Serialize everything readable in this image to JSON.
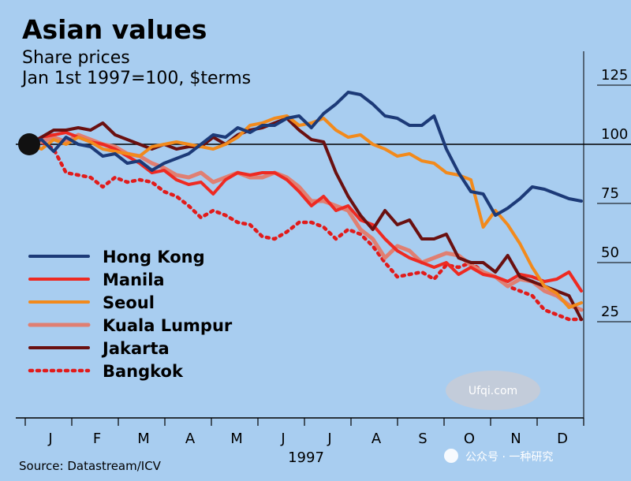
{
  "title": "Asian values",
  "subtitle": "Share prices",
  "subtitle2": "Jan 1st 1997=100, $terms",
  "source": "Source: Datastream/ICV",
  "watermark1": "Ufqi.com",
  "watermark2": "公众号 · 一种研究",
  "chart_data": {
    "type": "line",
    "title": "Asian values",
    "subtitle": "Share prices, Jan 1st 1997=100, $terms",
    "xlabel": "1997",
    "ylabel": "",
    "x_months": [
      "J",
      "F",
      "M",
      "A",
      "M",
      "J",
      "J",
      "A",
      "S",
      "O",
      "N",
      "D"
    ],
    "year_label": "1997",
    "ylim": [
      20,
      132
    ],
    "yticks": [
      25,
      50,
      75,
      100,
      125
    ],
    "grid": "horizontal at ticks",
    "legend_position": "left",
    "series": [
      {
        "name": "Hong Kong",
        "color": "#1c3a78",
        "dash": "",
        "width": 4,
        "x": [
          0,
          0.25,
          0.5,
          0.75,
          1,
          1.25,
          1.5,
          1.75,
          2,
          2.25,
          2.5,
          2.75,
          3,
          3.25,
          3.5,
          3.75,
          4,
          4.25,
          4.5,
          4.75,
          5,
          5.25,
          5.5,
          5.75,
          6,
          6.25,
          6.5,
          6.75,
          7,
          7.25,
          7.5,
          7.75,
          8,
          8.25,
          8.5,
          8.75,
          9,
          9.25,
          9.5,
          9.75,
          10,
          10.25,
          10.5,
          10.75,
          11,
          11.25
        ],
        "y": [
          100,
          102,
          97,
          103,
          100,
          99,
          95,
          96,
          92,
          93,
          89,
          92,
          94,
          96,
          100,
          104,
          103,
          107,
          105,
          108,
          108,
          111,
          112,
          107,
          113,
          117,
          122,
          121,
          117,
          112,
          111,
          108,
          108,
          112,
          98,
          88,
          80,
          79,
          70,
          73,
          77,
          82,
          81,
          79,
          77,
          76
        ]
      },
      {
        "name": "Manila",
        "color": "#ee2a22",
        "dash": "",
        "width": 4,
        "x": [
          0,
          0.25,
          0.5,
          0.75,
          1,
          1.25,
          1.5,
          1.75,
          2,
          2.25,
          2.5,
          2.75,
          3,
          3.25,
          3.5,
          3.75,
          4,
          4.25,
          4.5,
          4.75,
          5,
          5.25,
          5.5,
          5.75,
          6,
          6.25,
          6.5,
          6.75,
          7,
          7.25,
          7.5,
          7.75,
          8,
          8.25,
          8.5,
          8.75,
          9,
          9.25,
          9.5,
          9.75,
          10,
          10.25,
          10.5,
          10.75,
          11,
          11.25
        ],
        "y": [
          100,
          103,
          104,
          105,
          103,
          101,
          100,
          98,
          95,
          92,
          88,
          89,
          85,
          83,
          84,
          79,
          85,
          88,
          87,
          88,
          88,
          85,
          80,
          74,
          78,
          72,
          74,
          68,
          66,
          60,
          55,
          52,
          50,
          48,
          50,
          45,
          48,
          45,
          44,
          42,
          45,
          44,
          42,
          43,
          46,
          38
        ]
      },
      {
        "name": "Seoul",
        "color": "#f28a1c",
        "dash": "",
        "width": 4,
        "x": [
          0,
          0.25,
          0.5,
          0.75,
          1,
          1.25,
          1.5,
          1.75,
          2,
          2.25,
          2.5,
          2.75,
          3,
          3.25,
          3.5,
          3.75,
          4,
          4.25,
          4.5,
          4.75,
          5,
          5.25,
          5.5,
          5.75,
          6,
          6.25,
          6.5,
          6.75,
          7,
          7.25,
          7.5,
          7.75,
          8,
          8.25,
          8.5,
          8.75,
          9,
          9.25,
          9.5,
          9.75,
          10,
          10.25,
          10.5,
          10.75,
          11,
          11.25
        ],
        "y": [
          100,
          98,
          102,
          100,
          103,
          101,
          98,
          97,
          96,
          95,
          99,
          100,
          101,
          100,
          99,
          98,
          100,
          103,
          108,
          109,
          111,
          112,
          108,
          109,
          111,
          106,
          103,
          104,
          100,
          98,
          95,
          96,
          93,
          92,
          88,
          87,
          85,
          65,
          72,
          66,
          58,
          48,
          40,
          37,
          31,
          33
        ]
      },
      {
        "name": "Kuala Lumpur",
        "color": "#e07f72",
        "dash": "",
        "width": 5,
        "x": [
          0,
          0.25,
          0.5,
          0.75,
          1,
          1.25,
          1.5,
          1.75,
          2,
          2.25,
          2.5,
          2.75,
          3,
          3.25,
          3.5,
          3.75,
          4,
          4.25,
          4.5,
          4.75,
          5,
          5.25,
          5.5,
          5.75,
          6,
          6.25,
          6.5,
          6.75,
          7,
          7.25,
          7.5,
          7.75,
          8,
          8.25,
          8.5,
          8.75,
          9,
          9.25,
          9.5,
          9.75,
          10,
          10.25,
          10.5,
          10.75,
          11,
          11.25
        ],
        "y": [
          100,
          101,
          103,
          101,
          104,
          102,
          100,
          99,
          96,
          95,
          92,
          90,
          87,
          86,
          88,
          84,
          86,
          88,
          86,
          86,
          88,
          86,
          82,
          76,
          76,
          74,
          72,
          64,
          60,
          52,
          57,
          55,
          50,
          52,
          54,
          53,
          49,
          46,
          44,
          40,
          43,
          42,
          38,
          36,
          32,
          30
        ]
      },
      {
        "name": "Jakarta",
        "color": "#6a1010",
        "dash": "",
        "width": 4,
        "x": [
          0,
          0.25,
          0.5,
          0.75,
          1,
          1.25,
          1.5,
          1.75,
          2,
          2.25,
          2.5,
          2.75,
          3,
          3.25,
          3.5,
          3.75,
          4,
          4.25,
          4.5,
          4.75,
          5,
          5.25,
          5.5,
          5.75,
          6,
          6.25,
          6.5,
          6.75,
          7,
          7.25,
          7.5,
          7.75,
          8,
          8.25,
          8.5,
          8.75,
          9,
          9.25,
          9.5,
          9.75,
          10,
          10.25,
          10.5,
          10.75,
          11,
          11.25
        ],
        "y": [
          100,
          103,
          106,
          106,
          107,
          106,
          109,
          104,
          102,
          100,
          98,
          100,
          98,
          99,
          99,
          103,
          100,
          104,
          106,
          107,
          109,
          111,
          106,
          102,
          101,
          88,
          78,
          70,
          64,
          72,
          66,
          68,
          60,
          60,
          62,
          52,
          50,
          50,
          46,
          53,
          44,
          42,
          40,
          38,
          36,
          26
        ]
      },
      {
        "name": "Bangkok",
        "color": "#e11b1b",
        "dash": "3 6",
        "width": 4.5,
        "x": [
          0,
          0.25,
          0.5,
          0.75,
          1,
          1.25,
          1.5,
          1.75,
          2,
          2.25,
          2.5,
          2.75,
          3,
          3.25,
          3.5,
          3.75,
          4,
          4.25,
          4.5,
          4.75,
          5,
          5.25,
          5.5,
          5.75,
          6,
          6.25,
          6.5,
          6.75,
          7,
          7.25,
          7.5,
          7.75,
          8,
          8.25,
          8.5,
          8.75,
          9,
          9.25,
          9.5,
          9.75,
          10,
          10.25,
          10.5,
          10.75,
          11,
          11.25
        ],
        "y": [
          100,
          101,
          98,
          88,
          87,
          86,
          82,
          86,
          84,
          85,
          84,
          80,
          78,
          74,
          69,
          72,
          70,
          67,
          66,
          61,
          60,
          63,
          67,
          67,
          65,
          60,
          64,
          62,
          57,
          50,
          44,
          45,
          46,
          43,
          49,
          48,
          50,
          46,
          44,
          40,
          38,
          36,
          30,
          28,
          26,
          26
        ]
      }
    ]
  }
}
